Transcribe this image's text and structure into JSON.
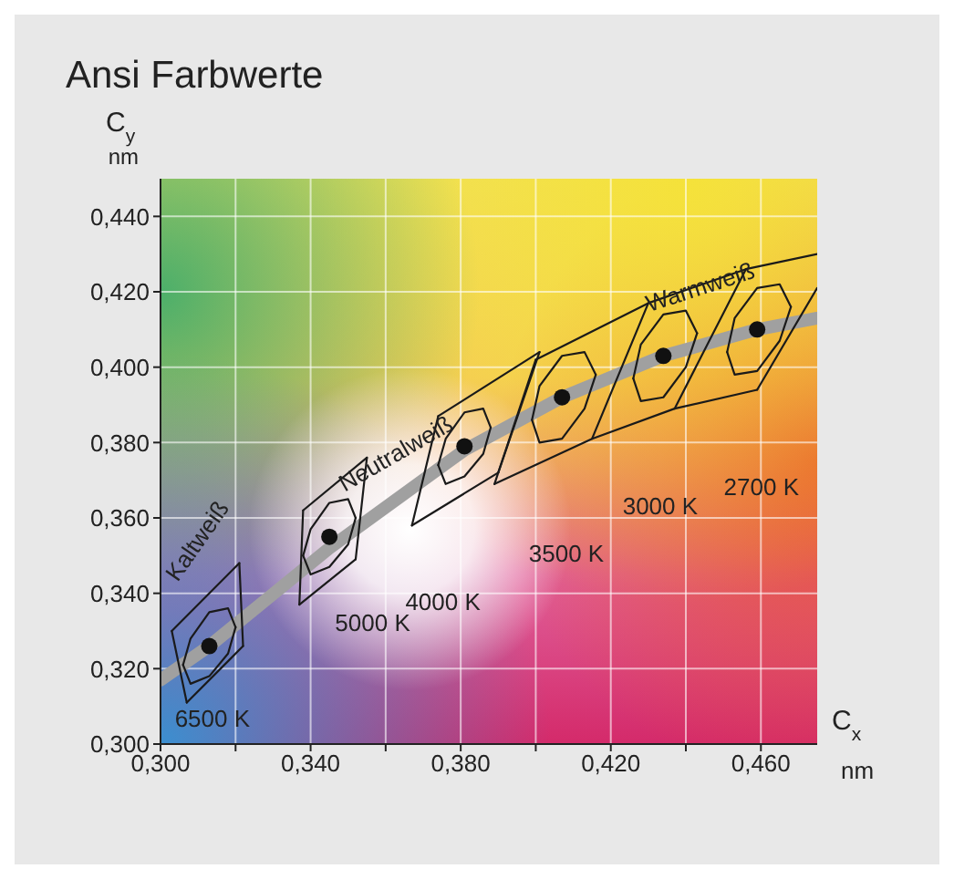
{
  "chart_data": {
    "type": "line",
    "title": "Ansi Farbwerte",
    "xlabel": "C$_{x}$ nm",
    "ylabel": "C$_{y}$ nm",
    "xlim": [
      0.3,
      0.475
    ],
    "ylim": [
      0.3,
      0.45
    ],
    "xticks": [
      {
        "value": 0.3,
        "label": "0,300"
      },
      {
        "value": 0.32,
        "label": null
      },
      {
        "value": 0.34,
        "label": "0,340"
      },
      {
        "value": 0.36,
        "label": null
      },
      {
        "value": 0.38,
        "label": "0,380"
      },
      {
        "value": 0.4,
        "label": null
      },
      {
        "value": 0.42,
        "label": "0,420"
      },
      {
        "value": 0.44,
        "label": null
      },
      {
        "value": 0.46,
        "label": "0,460"
      }
    ],
    "yticks": [
      {
        "value": 0.3,
        "label": "0,300"
      },
      {
        "value": 0.32,
        "label": "0,320"
      },
      {
        "value": 0.34,
        "label": "0,340"
      },
      {
        "value": 0.36,
        "label": "0,360"
      },
      {
        "value": 0.38,
        "label": "0,380"
      },
      {
        "value": 0.4,
        "label": "0,400"
      },
      {
        "value": 0.42,
        "label": "0,420"
      },
      {
        "value": 0.44,
        "label": "0,440"
      }
    ],
    "grid": true,
    "series": [
      {
        "color": "#a0a0a0",
        "marker": "none",
        "x": [
          0.3,
          0.313,
          0.345,
          0.381,
          0.407,
          0.434,
          0.459,
          0.475
        ],
        "values": [
          0.317,
          0.326,
          0.352,
          0.378,
          0.392,
          0.403,
          0.41,
          0.413
        ]
      },
      {
        "color": "#1a1a1a",
        "marker": "none",
        "x": [
          0.303,
          0.321
        ],
        "values": [
          0.33,
          0.348
        ]
      },
      {
        "color": "#1a1a1a",
        "marker": "none",
        "x": [
          0.303,
          0.307
        ],
        "values": [
          0.33,
          0.311
        ]
      },
      {
        "color": "#1a1a1a",
        "marker": "none",
        "x": [
          0.307,
          0.322
        ],
        "values": [
          0.311,
          0.326
        ]
      },
      {
        "color": "#1a1a1a",
        "marker": "none",
        "x": [
          0.321,
          0.322
        ],
        "values": [
          0.348,
          0.326
        ]
      },
      {
        "color": "#1a1a1a",
        "marker": "none",
        "x": [
          0.338,
          0.355
        ],
        "values": [
          0.362,
          0.376
        ]
      },
      {
        "color": "#1a1a1a",
        "marker": "none",
        "x": [
          0.337,
          0.338
        ],
        "values": [
          0.337,
          0.362
        ]
      },
      {
        "color": "#1a1a1a",
        "marker": "none",
        "x": [
          0.337,
          0.352
        ],
        "values": [
          0.337,
          0.349
        ]
      },
      {
        "color": "#1a1a1a",
        "marker": "none",
        "x": [
          0.352,
          0.355
        ],
        "values": [
          0.349,
          0.376
        ]
      },
      {
        "color": "#1a1a1a",
        "marker": "none",
        "x": [
          0.374,
          0.401
        ],
        "values": [
          0.387,
          0.404
        ]
      },
      {
        "color": "#1a1a1a",
        "marker": "none",
        "x": [
          0.367,
          0.374
        ],
        "values": [
          0.358,
          0.387
        ]
      },
      {
        "color": "#1a1a1a",
        "marker": "none",
        "x": [
          0.367,
          0.39
        ],
        "values": [
          0.358,
          0.372
        ]
      },
      {
        "color": "#1a1a1a",
        "marker": "none",
        "x": [
          0.39,
          0.401
        ],
        "values": [
          0.372,
          0.404
        ]
      },
      {
        "color": "#1a1a1a",
        "marker": "none",
        "x": [
          0.4,
          0.43,
          0.456,
          0.475
        ],
        "values": [
          0.402,
          0.417,
          0.426,
          0.43
        ]
      },
      {
        "color": "#1a1a1a",
        "marker": "none",
        "x": [
          0.389,
          0.4
        ],
        "values": [
          0.369,
          0.402
        ]
      },
      {
        "color": "#1a1a1a",
        "marker": "none",
        "x": [
          0.389,
          0.415,
          0.437,
          0.459
        ],
        "values": [
          0.369,
          0.381,
          0.389,
          0.394
        ]
      },
      {
        "color": "#1a1a1a",
        "marker": "none",
        "x": [
          0.415,
          0.43
        ],
        "values": [
          0.381,
          0.417
        ]
      },
      {
        "color": "#1a1a1a",
        "marker": "none",
        "x": [
          0.437,
          0.456
        ],
        "values": [
          0.389,
          0.426
        ]
      },
      {
        "color": "#1a1a1a",
        "marker": "none",
        "x": [
          0.459,
          0.475
        ],
        "values": [
          0.394,
          0.421
        ]
      },
      {
        "color": "#1a1a1a",
        "marker": "none",
        "x": [
          0.306,
          0.308,
          0.313,
          0.318,
          0.32
        ],
        "values": [
          0.321,
          0.328,
          0.335,
          0.336,
          0.331
        ]
      },
      {
        "color": "#1a1a1a",
        "marker": "none",
        "x": [
          0.306,
          0.308,
          0.313,
          0.318,
          0.32
        ],
        "values": [
          0.321,
          0.316,
          0.318,
          0.324,
          0.331
        ]
      },
      {
        "color": "#1a1a1a",
        "marker": "none",
        "x": [
          0.338,
          0.34,
          0.345,
          0.35,
          0.352
        ],
        "values": [
          0.35,
          0.357,
          0.364,
          0.365,
          0.36
        ]
      },
      {
        "color": "#1a1a1a",
        "marker": "none",
        "x": [
          0.338,
          0.34,
          0.345,
          0.35,
          0.352
        ],
        "values": [
          0.35,
          0.345,
          0.347,
          0.353,
          0.36
        ]
      },
      {
        "color": "#1a1a1a",
        "marker": "none",
        "x": [
          0.374,
          0.376,
          0.381,
          0.386,
          0.388
        ],
        "values": [
          0.374,
          0.381,
          0.388,
          0.389,
          0.384
        ]
      },
      {
        "color": "#1a1a1a",
        "marker": "none",
        "x": [
          0.374,
          0.376,
          0.381,
          0.386,
          0.388
        ],
        "values": [
          0.374,
          0.369,
          0.371,
          0.377,
          0.384
        ]
      },
      {
        "color": "#1a1a1a",
        "marker": "none",
        "x": [
          0.399,
          0.401,
          0.407,
          0.413,
          0.416
        ],
        "values": [
          0.386,
          0.395,
          0.403,
          0.404,
          0.398
        ]
      },
      {
        "color": "#1a1a1a",
        "marker": "none",
        "x": [
          0.399,
          0.401,
          0.407,
          0.413,
          0.416
        ],
        "values": [
          0.386,
          0.38,
          0.381,
          0.389,
          0.398
        ]
      },
      {
        "color": "#1a1a1a",
        "marker": "none",
        "x": [
          0.426,
          0.428,
          0.434,
          0.44,
          0.443
        ],
        "values": [
          0.397,
          0.406,
          0.414,
          0.415,
          0.409
        ]
      },
      {
        "color": "#1a1a1a",
        "marker": "none",
        "x": [
          0.426,
          0.428,
          0.434,
          0.44,
          0.443
        ],
        "values": [
          0.397,
          0.391,
          0.392,
          0.4,
          0.409
        ]
      },
      {
        "color": "#1a1a1a",
        "marker": "none",
        "x": [
          0.451,
          0.453,
          0.459,
          0.465,
          0.468
        ],
        "values": [
          0.404,
          0.413,
          0.421,
          0.422,
          0.416
        ]
      },
      {
        "color": "#1a1a1a",
        "marker": "none",
        "x": [
          0.451,
          0.453,
          0.459,
          0.465,
          0.468
        ],
        "values": [
          0.404,
          0.398,
          0.399,
          0.407,
          0.416
        ]
      },
      {
        "type": "scatter",
        "color": "#111111",
        "marker": "circle",
        "x": [
          0.313,
          0.345,
          0.381,
          0.407,
          0.434,
          0.459
        ],
        "values": [
          0.326,
          0.355,
          0.379,
          0.392,
          0.403,
          0.41
        ]
      }
    ],
    "annotations": [
      "6500 K",
      "5000 K",
      "4000 K",
      "3500 K",
      "3000 K",
      "2700 K",
      "Kaltweiß",
      "Neutralweiß",
      "Warmweiß"
    ]
  }
}
